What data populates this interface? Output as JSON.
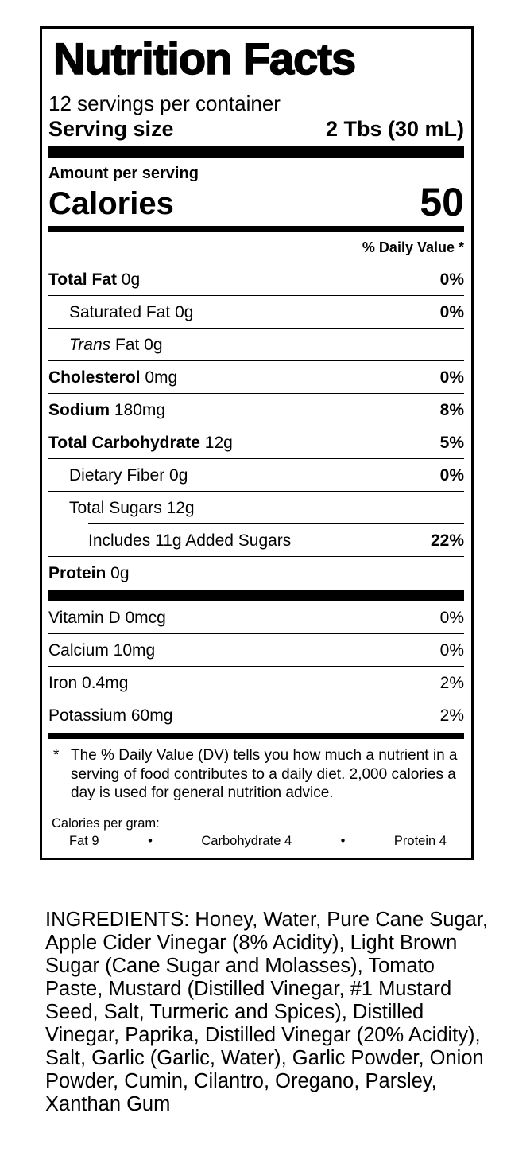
{
  "label": {
    "title": "Nutrition Facts",
    "servings_per_container": "12 servings per container",
    "serving_size_label": "Serving size",
    "serving_size_value": "2 Tbs (30 mL)",
    "amount_per_serving": "Amount per serving",
    "calories_label": "Calories",
    "calories_value": "50",
    "daily_value_header": "% Daily Value *",
    "nutrients": [
      {
        "name": "Total Fat",
        "amount": "0g",
        "dv": "0%",
        "bold": true,
        "indent": 0
      },
      {
        "name": "Saturated Fat",
        "amount": "0g",
        "dv": "0%",
        "bold": false,
        "indent": 1
      },
      {
        "prefix_italic": "Trans",
        "name": "Fat",
        "amount": "0g",
        "dv": "",
        "bold": false,
        "indent": 1
      },
      {
        "name": "Cholesterol",
        "amount": "0mg",
        "dv": "0%",
        "bold": true,
        "indent": 0
      },
      {
        "name": "Sodium",
        "amount": "180mg",
        "dv": "8%",
        "bold": true,
        "indent": 0
      },
      {
        "name": "Total Carbohydrate",
        "amount": "12g",
        "dv": "5%",
        "bold": true,
        "indent": 0
      },
      {
        "name": "Dietary Fiber",
        "amount": "0g",
        "dv": "0%",
        "bold": false,
        "indent": 1
      },
      {
        "name": "Total Sugars",
        "amount": "12g",
        "dv": "",
        "bold": false,
        "indent": 1
      },
      {
        "name": "Includes 11g Added Sugars",
        "amount": "",
        "dv": "22%",
        "bold": false,
        "indent": 2,
        "partial_rule": true
      },
      {
        "name": "Protein",
        "amount": "0g",
        "dv": "",
        "bold": true,
        "indent": 0
      }
    ],
    "vitamins": [
      {
        "name": "Vitamin D",
        "amount": "0mcg",
        "dv": "0%"
      },
      {
        "name": "Calcium",
        "amount": "10mg",
        "dv": "0%"
      },
      {
        "name": "Iron",
        "amount": "0.4mg",
        "dv": "2%"
      },
      {
        "name": "Potassium",
        "amount": "60mg",
        "dv": "2%"
      }
    ],
    "footnote_marker": "*",
    "footnote_text": "The % Daily Value (DV) tells you how much a nutrient in a serving of food contributes to a daily diet. 2,000 calories a day is used for general nutrition advice.",
    "calories_per_gram": {
      "title": "Calories per gram:",
      "items": [
        "Fat 9",
        "Carbohydrate 4",
        "Protein 4"
      ],
      "separator": "•"
    }
  },
  "ingredients_text": "INGREDIENTS: Honey, Water, Pure Cane Sugar, Apple Cider Vinegar (8% Acidity), Light Brown Sugar (Cane Sugar and Molasses), Tomato Paste, Mustard (Distilled Vinegar, #1 Mustard Seed, Salt, Turmeric and Spices), Distilled Vinegar, Paprika, Distilled Vinegar (20% Acidity), Salt, Garlic (Garlic, Water), Garlic Powder, Onion Powder, Cumin, Cilantro, Oregano, Parsley, Xanthan Gum"
}
